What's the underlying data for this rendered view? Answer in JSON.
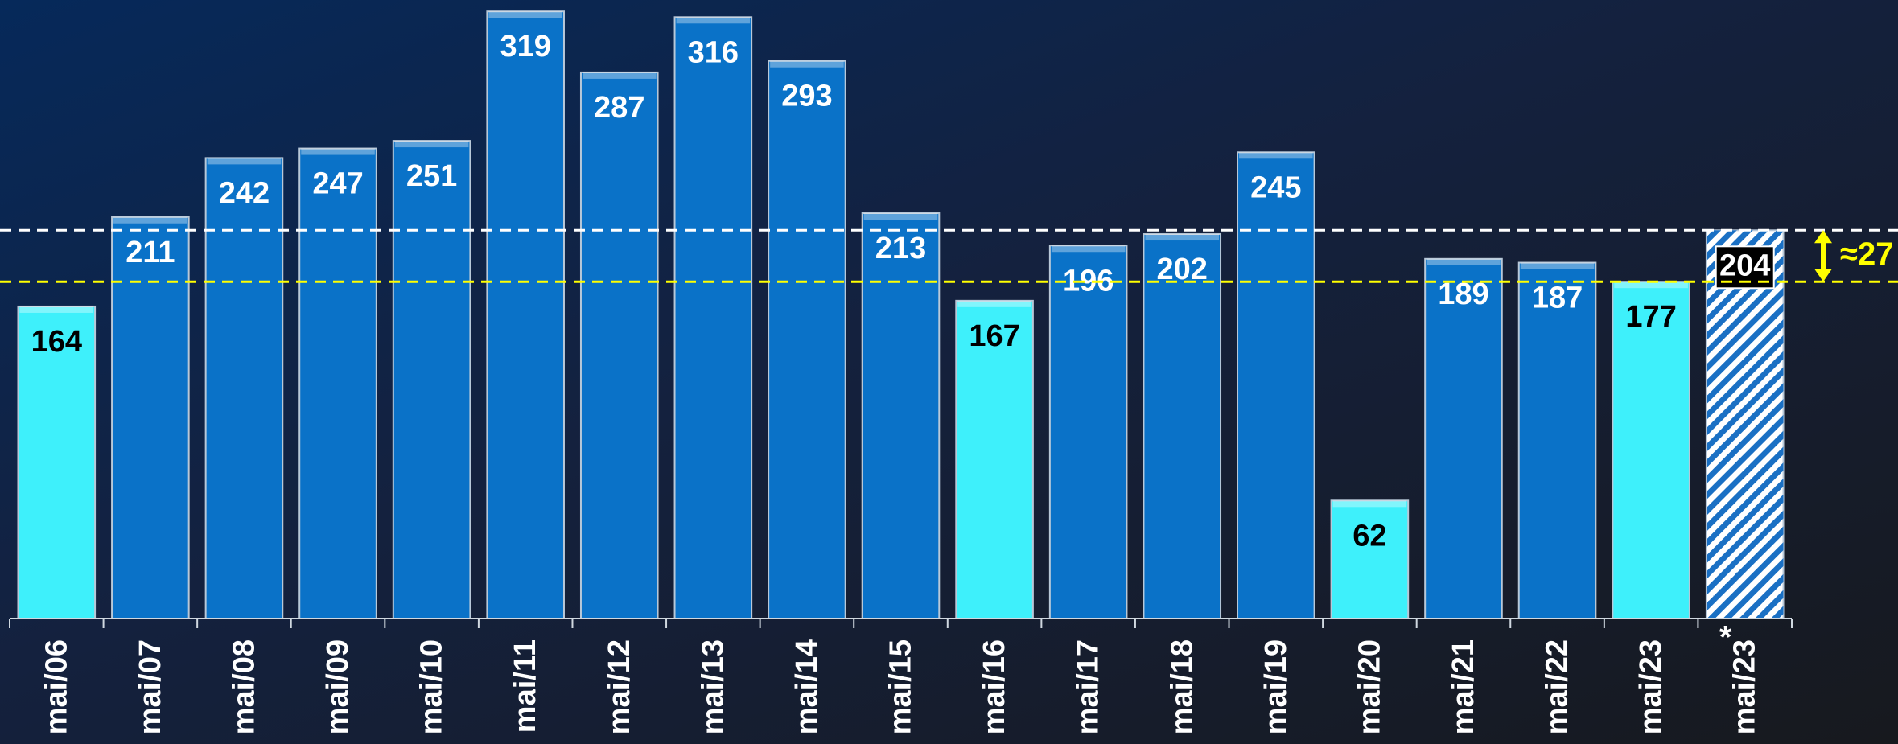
{
  "chart_data": {
    "type": "bar",
    "categories": [
      "mai/06",
      "mai/07",
      "mai/08",
      "mai/09",
      "mai/10",
      "mai/11",
      "mai/12",
      "mai/13",
      "mai/14",
      "mai/15",
      "mai/16",
      "mai/17",
      "mai/18",
      "mai/19",
      "mai/20",
      "mai/21",
      "mai/22",
      "mai/23",
      "mai/23"
    ],
    "values": [
      164,
      211,
      242,
      247,
      251,
      319,
      287,
      316,
      293,
      213,
      167,
      196,
      202,
      245,
      62,
      189,
      187,
      177,
      204
    ],
    "colors": [
      "#3ef0fb",
      "#0a72c8",
      "#0a72c8",
      "#0a72c8",
      "#0a72c8",
      "#0a72c8",
      "#0a72c8",
      "#0a72c8",
      "#0a72c8",
      "#0a72c8",
      "#3ef0fb",
      "#0a72c8",
      "#0a72c8",
      "#0a72c8",
      "#3ef0fb",
      "#0a72c8",
      "#0a72c8",
      "#3ef0fb",
      "#ffffff"
    ],
    "hatched": [
      18
    ],
    "hatch_color": "#1a70c4",
    "ylim": [
      0,
      325
    ],
    "reference_lines": [
      {
        "value": 204,
        "color": "#ffffff"
      },
      {
        "value": 177,
        "color": "#ffff00"
      }
    ],
    "footnote_mark": "*",
    "annotation": "≈27"
  }
}
